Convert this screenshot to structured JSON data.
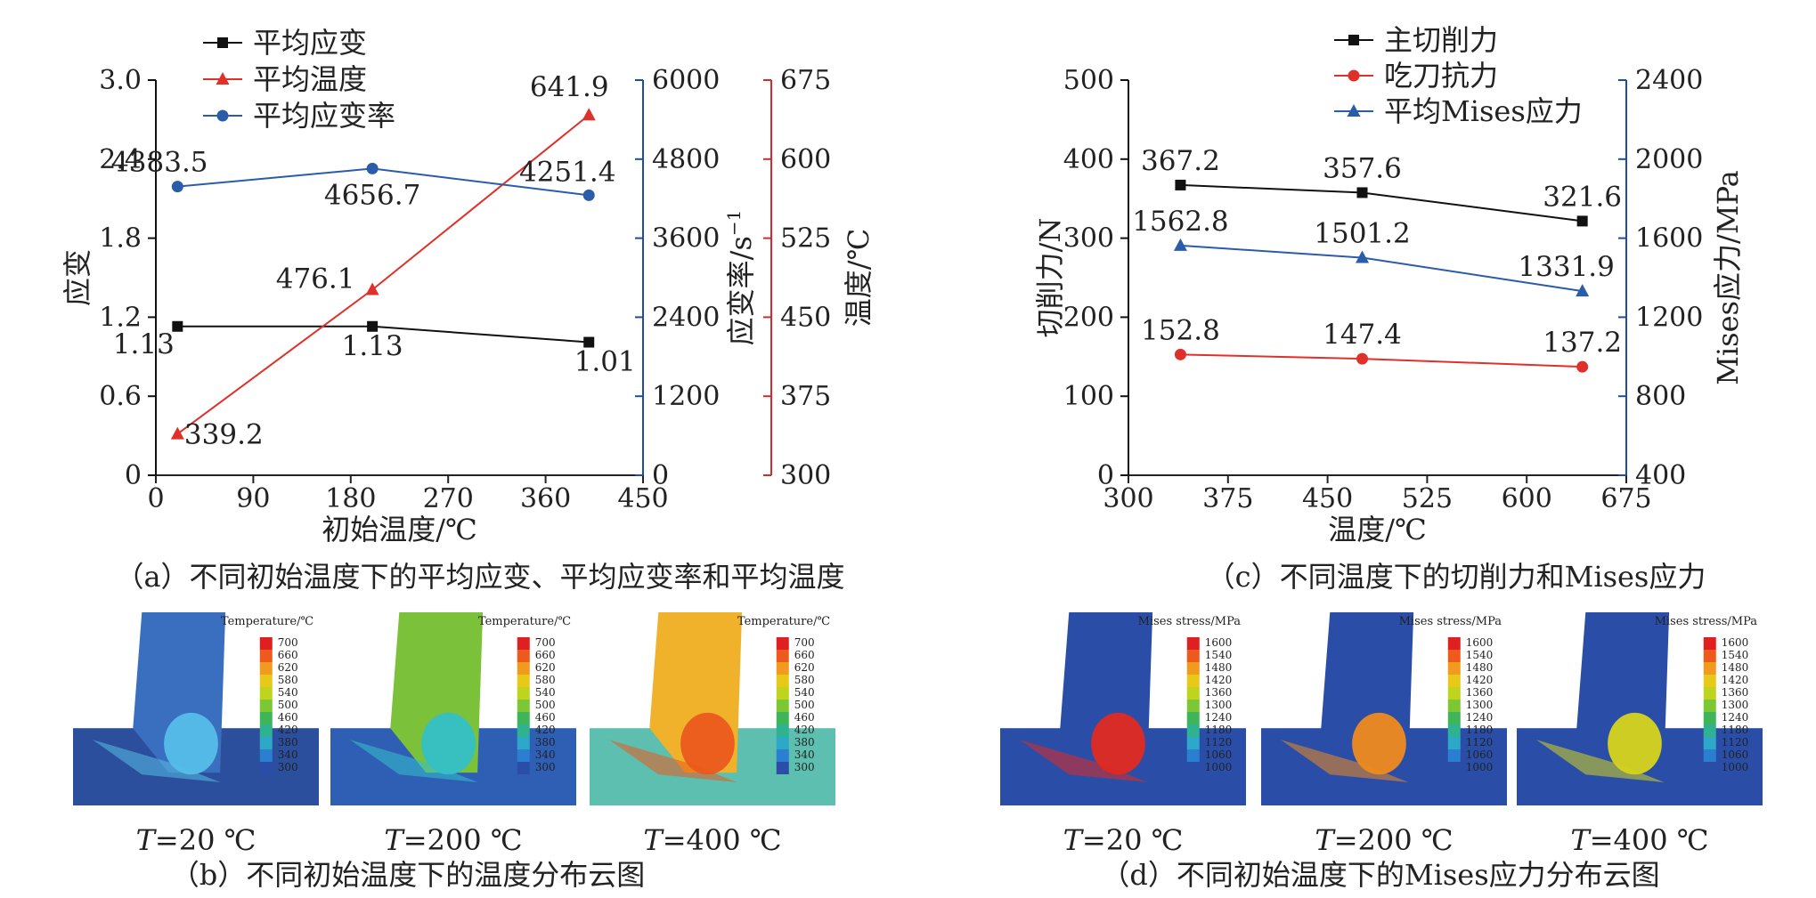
{
  "chart_data": [
    {
      "id": "a",
      "type": "line",
      "caption": "（a）不同初始温度下的平均应变、平均应变率和平均温度",
      "xlabel": "初始温度/℃",
      "x": [
        20,
        200,
        400
      ],
      "xlim": [
        0,
        450
      ],
      "xticks": [
        0,
        90,
        180,
        270,
        360,
        450
      ],
      "axes": [
        {
          "key": "strain",
          "label": "应变",
          "side": "left",
          "color": "#111111",
          "lim": [
            0,
            3.0
          ],
          "ticks": [
            "0",
            "0.6",
            "1.2",
            "1.8",
            "2.4",
            "3.0"
          ]
        },
        {
          "key": "rate",
          "label": "应变率/s",
          "label_sup": "−1",
          "side": "right",
          "color": "#1f4e9c",
          "lim": [
            0,
            6000
          ],
          "ticks": [
            "0",
            "1200",
            "2400",
            "3600",
            "4800",
            "6000"
          ]
        },
        {
          "key": "temp",
          "label": "温度/℃",
          "side": "right2",
          "color": "#d62a2a",
          "lim": [
            300,
            675
          ],
          "ticks": [
            "300",
            "375",
            "450",
            "525",
            "600",
            "675"
          ]
        }
      ],
      "series": [
        {
          "name": "平均应变",
          "axis": "strain",
          "marker": "square",
          "color": "#111111",
          "values": [
            1.13,
            1.13,
            1.01
          ],
          "labels": [
            "1.13",
            "1.13",
            "1.01"
          ]
        },
        {
          "name": "平均温度",
          "axis": "temp",
          "marker": "triangle",
          "color": "#e0302a",
          "values": [
            339.2,
            476.1,
            641.9
          ],
          "labels": [
            "339.2",
            "476.1",
            "641.9"
          ]
        },
        {
          "name": "平均应变率",
          "axis": "rate",
          "marker": "circle",
          "color": "#2a5caa",
          "values": [
            4383.5,
            4656.7,
            4251.4
          ],
          "labels": [
            "4383.5",
            "4656.7",
            "4251.4"
          ]
        }
      ],
      "legend_position": "top-left"
    },
    {
      "id": "c",
      "type": "line",
      "caption": "（c）不同温度下的切削力和Mises应力",
      "xlabel": "温度/℃",
      "x": [
        339.2,
        476.1,
        641.9
      ],
      "xlim": [
        300,
        675
      ],
      "xticks": [
        300,
        375,
        450,
        525,
        600,
        675
      ],
      "axes": [
        {
          "key": "force",
          "label": "切削力/N",
          "side": "left",
          "color": "#111111",
          "lim": [
            0,
            500
          ],
          "ticks": [
            "0",
            "100",
            "200",
            "300",
            "400",
            "500"
          ]
        },
        {
          "key": "stress",
          "label": "Mises应力/MPa",
          "side": "right",
          "color": "#1f4e9c",
          "lim": [
            400,
            2400
          ],
          "ticks": [
            "400",
            "800",
            "1200",
            "1600",
            "2000",
            "2400"
          ]
        }
      ],
      "series": [
        {
          "name": "主切削力",
          "axis": "force",
          "marker": "square",
          "color": "#111111",
          "values": [
            367.2,
            357.6,
            321.6
          ],
          "labels": [
            "367.2",
            "357.6",
            "321.6"
          ]
        },
        {
          "name": "吃刀抗力",
          "axis": "force",
          "marker": "circle",
          "color": "#e0302a",
          "values": [
            152.8,
            147.4,
            137.2
          ],
          "labels": [
            "152.8",
            "147.4",
            "137.2"
          ]
        },
        {
          "name": "平均Mises应力",
          "axis": "stress",
          "marker": "triangle",
          "color": "#2a5caa",
          "values": [
            1562.8,
            1501.2,
            1331.9
          ],
          "labels": [
            "1562.8",
            "1501.2",
            "1331.9"
          ]
        }
      ],
      "legend_position": "top-center"
    },
    {
      "id": "b",
      "type": "heatmap",
      "caption": "（b）不同初始温度下的温度分布云图",
      "colorbar_title": "Temperature/℃",
      "colorbar_ticks": [
        "700",
        "660",
        "620",
        "580",
        "540",
        "500",
        "460",
        "420",
        "380",
        "340",
        "300"
      ],
      "colorbar_colors": [
        "#e02020",
        "#ee5a1c",
        "#f29a1e",
        "#e8c91a",
        "#bfd41c",
        "#7cc734",
        "#3fb55a",
        "#2fb28f",
        "#2ea8c8",
        "#2a7fd0",
        "#2a4ea8"
      ],
      "panels": [
        {
          "label_italic": "T",
          "label_rest": "=20 ℃",
          "tool_color": "#3a6fbf",
          "work_color": "#2b4f9c",
          "hot_color": "#55bde8"
        },
        {
          "label_italic": "T",
          "label_rest": "=200 ℃",
          "tool_color": "#7cc13a",
          "work_color": "#2f5fb5",
          "hot_color": "#35c0c8"
        },
        {
          "label_italic": "T",
          "label_rest": "=400 ℃",
          "tool_color": "#f0b22a",
          "work_color": "#5dbfb0",
          "hot_color": "#ea5a1c"
        }
      ]
    },
    {
      "id": "d",
      "type": "heatmap",
      "caption": "（d）不同初始温度下的Mises应力分布云图",
      "colorbar_title": "Mises stress/MPa",
      "colorbar_ticks": [
        "1600",
        "1540",
        "1480",
        "1420",
        "1360",
        "1300",
        "1240",
        "1180",
        "1120",
        "1060",
        "1000"
      ],
      "colorbar_colors": [
        "#e02020",
        "#ee5a1c",
        "#f29a1e",
        "#e8c91a",
        "#bfd41c",
        "#7cc734",
        "#3fb55a",
        "#2fb28f",
        "#2ea8c8",
        "#2a7fd0",
        "#2a4ea8"
      ],
      "panels": [
        {
          "label_italic": "T",
          "label_rest": "=20 ℃",
          "tool_color": "#2a4ea8",
          "work_color": "#2a4ea8",
          "hot_color": "#e02a20"
        },
        {
          "label_italic": "T",
          "label_rest": "=200 ℃",
          "tool_color": "#2a4ea8",
          "work_color": "#2a4ea8",
          "hot_color": "#ef8a1e"
        },
        {
          "label_italic": "T",
          "label_rest": "=400 ℃",
          "tool_color": "#2a4ea8",
          "work_color": "#2a4ea8",
          "hot_color": "#d6d41c"
        }
      ]
    }
  ]
}
